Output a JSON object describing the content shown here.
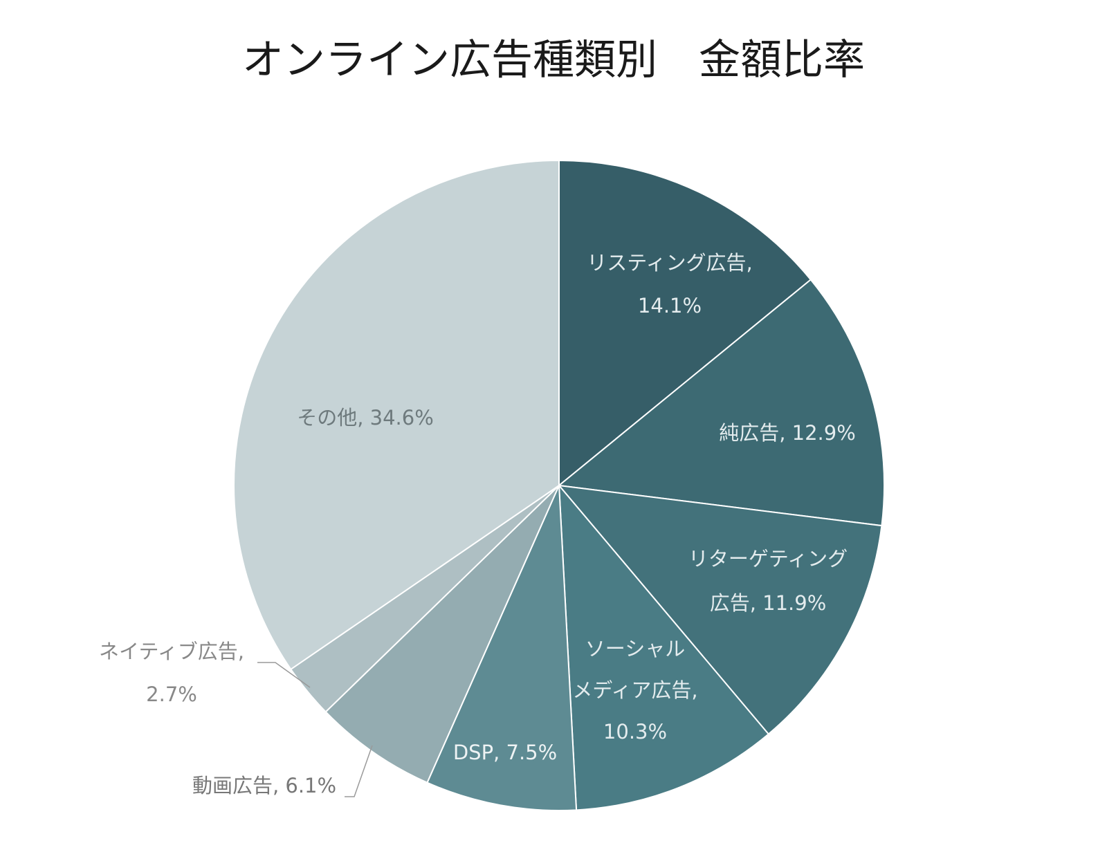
{
  "chart_data": {
    "type": "pie",
    "title": "オンライン広告種類別　金額比率",
    "slices": [
      {
        "name": "リスティング広告",
        "value": 14.1,
        "label_lines": [
          "リスティング広告,",
          "14.1%"
        ],
        "color": "#365e68",
        "text_color": "#e4ecee"
      },
      {
        "name": "純広告",
        "value": 12.9,
        "label_lines": [
          "純広告, 12.9%"
        ],
        "color": "#3d6a73",
        "text_color": "#e4ecee"
      },
      {
        "name": "リターゲティング広告",
        "value": 11.9,
        "label_lines": [
          "リターゲティング",
          "広告, 11.9%"
        ],
        "color": "#43727b",
        "text_color": "#e4ecee"
      },
      {
        "name": "ソーシャルメディア広告",
        "value": 10.3,
        "label_lines": [
          "ソーシャル",
          "メディア広告,",
          "10.3%"
        ],
        "color": "#4a7c85",
        "text_color": "#e4ecee"
      },
      {
        "name": "DSP",
        "value": 7.5,
        "label_lines": [
          "DSP, 7.5%"
        ],
        "color": "#5e8b93",
        "text_color": "#eef3f4"
      },
      {
        "name": "動画広告",
        "value": 6.1,
        "label_lines": [
          "動画広告, 6.1%"
        ],
        "color": "#94acb1",
        "text_color": "#777777"
      },
      {
        "name": "ネイティブ広告",
        "value": 2.7,
        "label_lines": [
          "ネイティブ広告,",
          "2.7%"
        ],
        "color": "#aebfc3",
        "text_color": "#888888"
      },
      {
        "name": "その他",
        "value": 34.6,
        "label_lines": [
          "その他, 34.6%"
        ],
        "color": "#c6d3d6",
        "text_color": "#6e7a7d"
      }
    ]
  }
}
